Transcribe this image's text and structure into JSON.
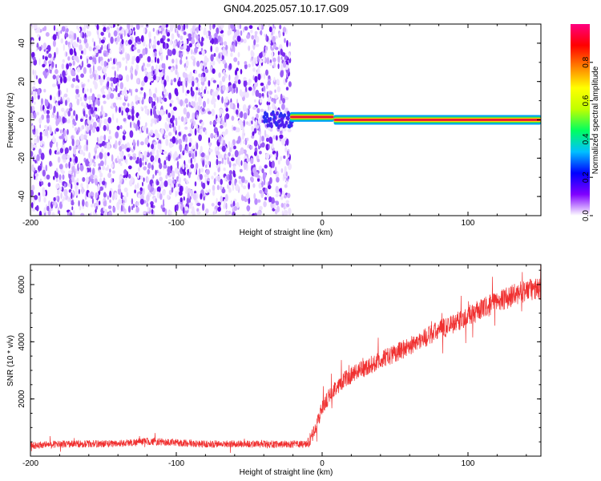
{
  "title": "GN04.2025.057.10.17.G09",
  "colors": {
    "snr_line": "#f03030",
    "spectrogram_scatter": "#6f1ff0",
    "ridge_core": "#e8103a",
    "ridge_inner": "#ffd400",
    "ridge_mid": "#30e050",
    "ridge_outer": "#00a0ff",
    "axes": "#000000"
  },
  "chart_data": [
    {
      "type": "heatmap",
      "panel": "top",
      "xlabel": "Height of straight line (km)",
      "ylabel": "Frequency (Hz)",
      "xlim": [
        -200,
        150
      ],
      "ylim": [
        -50,
        50
      ],
      "xticks": [
        -200,
        -100,
        0,
        100
      ],
      "yticks": [
        -40,
        -20,
        0,
        20,
        40
      ],
      "grid": false,
      "noise_region_x": [
        -200,
        -22
      ],
      "ridge": {
        "description_freq_hz": 0,
        "segments": [
          {
            "x_start": -22,
            "x_end": 8,
            "freq": 1.5
          },
          {
            "x_start": 8,
            "x_end": 150,
            "freq": 0
          }
        ]
      },
      "colorbar": {
        "label": "Normalized spectral amplitude",
        "range": [
          0.0,
          1.0
        ],
        "ticks": [
          "0.0",
          "0.2",
          "0.4",
          "0.6",
          "0.8"
        ],
        "tick_values": [
          0.0,
          0.2,
          0.4,
          0.6,
          0.8
        ],
        "colormap": [
          "#ffffff",
          "#8000ff",
          "#0000ff",
          "#00c0ff",
          "#00ff60",
          "#c0ff00",
          "#ffff00",
          "#ff8000",
          "#ff0000",
          "#ff0080"
        ]
      }
    },
    {
      "type": "line",
      "panel": "bottom",
      "xlabel": "Height of straight line (km)",
      "ylabel": "SNR (10 * v/v)",
      "xlim": [
        -200,
        150
      ],
      "ylim": [
        0,
        6700
      ],
      "xticks": [
        -200,
        -100,
        0,
        100
      ],
      "yticks": [
        2000,
        4000,
        6000
      ],
      "grid": false,
      "series": [
        {
          "x": [
            -200,
            -180,
            -160,
            -140,
            -120,
            -100,
            -80,
            -60,
            -40,
            -20,
            -10,
            -5,
            0,
            5,
            10,
            20,
            40,
            60,
            80,
            100,
            120,
            140,
            150
          ],
          "y": [
            380,
            420,
            430,
            440,
            520,
            470,
            420,
            430,
            420,
            420,
            420,
            900,
            1700,
            2100,
            2450,
            2850,
            3350,
            3850,
            4400,
            4900,
            5400,
            5800,
            5850
          ]
        }
      ]
    }
  ]
}
